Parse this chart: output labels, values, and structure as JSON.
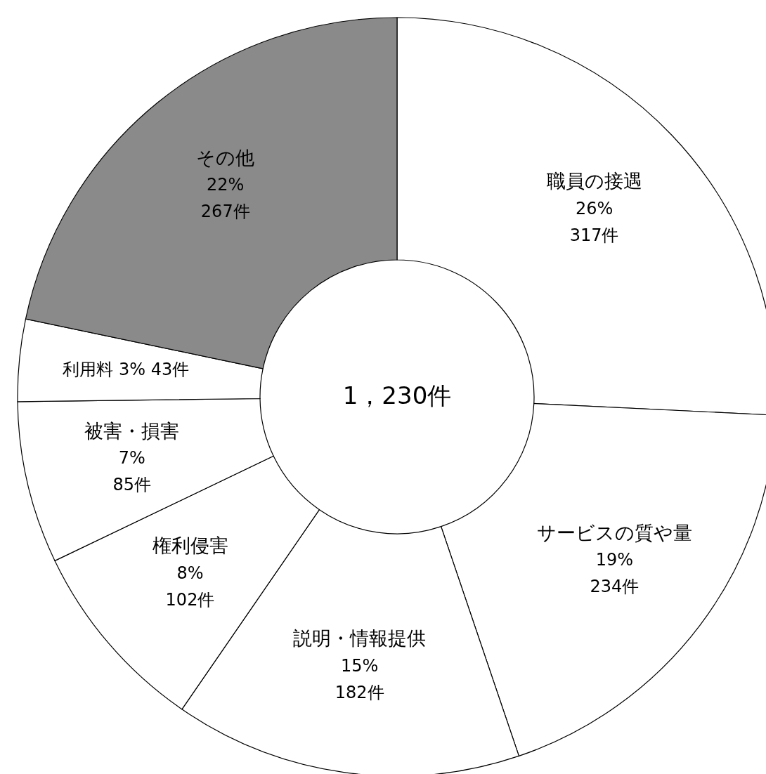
{
  "chart_data": {
    "type": "donut",
    "categories": [
      "職員の接遇",
      "サービスの質や量",
      "説明・情報提供",
      "権利侵害",
      "被害・損害",
      "利用料",
      "その他"
    ],
    "values": [
      317,
      234,
      182,
      102,
      85,
      43,
      267
    ],
    "colors": [
      "#ffffff",
      "#ffffff",
      "#ffffff",
      "#ffffff",
      "#ffffff",
      "#ffffff",
      "#8a8a8a"
    ],
    "value_labels": [
      "26%\n317件",
      "19%\n234件",
      "15%\n182件",
      "8%\n102件",
      "7%\n85件",
      "3%\n43件",
      "22%\n267件"
    ],
    "annotations": [
      "1，230件"
    ]
  }
}
